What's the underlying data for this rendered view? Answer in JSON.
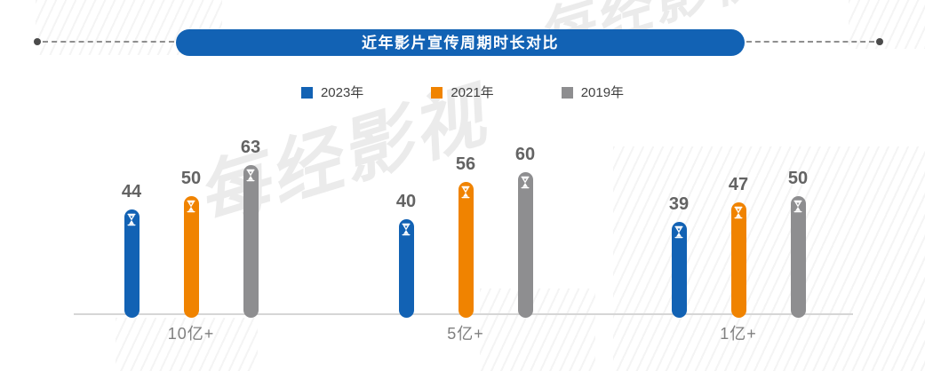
{
  "header": {
    "title": "近年影片宣传周期时长对比"
  },
  "watermark": {
    "text": "每经影视"
  },
  "chart_data": {
    "type": "bar",
    "title": "近年影片宣传周期时长对比",
    "categories": [
      "10亿+",
      "5亿+",
      "1亿+"
    ],
    "series": [
      {
        "name": "2023年",
        "color": "#1262B4",
        "values": [
          44,
          40,
          39
        ]
      },
      {
        "name": "2021年",
        "color": "#F08300",
        "values": [
          50,
          56,
          47
        ]
      },
      {
        "name": "2019年",
        "color": "#8E8E90",
        "values": [
          63,
          60,
          50
        ]
      }
    ],
    "legend_position": "top",
    "grid": false,
    "ylim": [
      0,
      70
    ],
    "value_labels_shown": true,
    "bar_icon": "hourglass-icon",
    "bar_style": "rounded-capsule"
  },
  "colors": {
    "banner_blue": "#1262B4",
    "value_label": "#636363",
    "category_label": "#7F7F7F",
    "baseline": "#D6D6D6",
    "legend_label": "#404040",
    "dashed_line": "#8F8F8F"
  }
}
